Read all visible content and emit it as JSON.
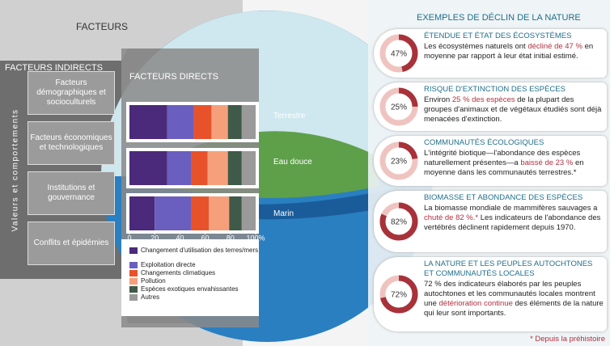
{
  "header": {
    "title": "FACTEURS"
  },
  "indirect_factors": {
    "title": "FACTEURS INDIRECTS",
    "side_label": "Valeurs et comportements",
    "items": [
      "Facteurs démographiques et socioculturels",
      "Facteurs économiques et technologiques",
      "Institutions et gouvernance",
      "Conflits et épidémies"
    ]
  },
  "chart_data": {
    "type": "bar",
    "orientation": "horizontal",
    "stacked": true,
    "title": "FACTEURS DIRECTS",
    "categories": [
      "Terrestre",
      "Eau douce",
      "Marin"
    ],
    "series": [
      {
        "name": "Changement d'utilisation des terres/mers",
        "color": "#4b2a7b",
        "values": [
          30,
          30,
          20
        ]
      },
      {
        "name": "Exploitation directe",
        "color": "#6a5fbf",
        "values": [
          21,
          19,
          29
        ]
      },
      {
        "name": "Changements climatiques",
        "color": "#e8522a",
        "values": [
          14,
          13,
          14
        ]
      },
      {
        "name": "Pollution",
        "color": "#f5a07a",
        "values": [
          13,
          16,
          16
        ]
      },
      {
        "name": "Espèces exotiques envahissantes",
        "color": "#3f5a48",
        "values": [
          11,
          11,
          10
        ]
      },
      {
        "name": "Autres",
        "color": "#9a9a9a",
        "values": [
          11,
          11,
          11
        ]
      }
    ],
    "xlim": [
      0,
      100
    ],
    "xticks": [
      0,
      20,
      40,
      60,
      80,
      {
        "value": 100,
        "label": "100%"
      }
    ]
  },
  "examples": {
    "title": "EXEMPLES DE DÉCLIN DE LA NATURE",
    "cards": [
      {
        "title": "ÉTENDUE ET ÉTAT DES ÉCOSYSTÈMES",
        "percent": 47,
        "percent_label": "47%",
        "text": {
          "before": "Les écosystèmes naturels ont ",
          "highlight": "décliné de 47 %",
          "after": " en moyenne par rapport à leur état initial estimé."
        }
      },
      {
        "title": "RISQUE D'EXTINCTION DES ESPÈCES",
        "percent": 25,
        "percent_label": "25%",
        "text": {
          "before": "Environ ",
          "highlight": "25 % des espèces",
          "after": " de la plupart des groupes d'animaux et de végétaux étudiés sont déjà menacées d'extinction."
        }
      },
      {
        "title": "COMMUNAUTÉS ÉCOLOGIQUES",
        "percent": 23,
        "percent_label": "23%",
        "text": {
          "before": "L'intégrité biotique—l'abondance des espèces naturellement présentes—a ",
          "highlight": "baissé de 23 %",
          "after": " en moyenne dans les communautés terrestres.*"
        }
      },
      {
        "title": "BIOMASSE ET ABONDANCE DES ESPÈCES",
        "percent": 82,
        "percent_label": "82%",
        "text": {
          "before": "La biomasse mondiale de mammifères sauvages a ",
          "highlight": "chuté de 82 %.*",
          "after": " Les indicateurs de l'abondance des vertébrés déclinent rapidement depuis 1970."
        }
      },
      {
        "title": "LA NATURE ET LES PEUPLES AUTOCHTONES ET COMMUNAUTÉS LOCALES",
        "percent": 72,
        "percent_label": "72%",
        "text": {
          "before": "72 % des indicateurs élaborés par les peuples autochtones et les communautés locales montrent une ",
          "highlight": "détérioration continue",
          "after": " des éléments de la nature qui leur sont importants."
        }
      }
    ]
  },
  "footnote": "* Depuis la préhistoire"
}
